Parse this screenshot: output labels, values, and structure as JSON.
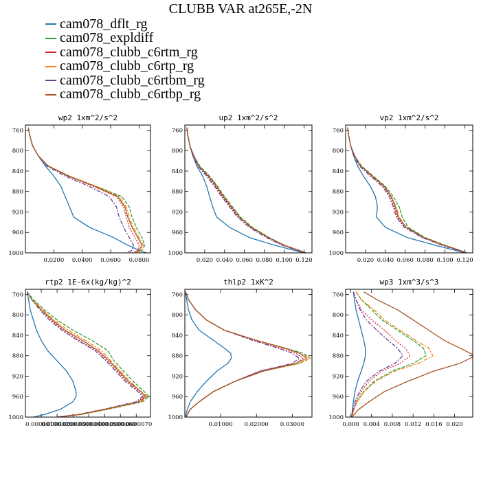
{
  "title": "CLUBB VAR at265E,-2N",
  "legend": [
    {
      "name": "cam078_dflt_rg",
      "color": "#1f77b4",
      "dash": ""
    },
    {
      "name": "cam078_expldiff",
      "color": "#2ca02c",
      "dash": "5,2"
    },
    {
      "name": "cam078_clubb_c6rtm_rg",
      "color": "#d62728",
      "dash": "2,2"
    },
    {
      "name": "cam078_clubb_c6rtp_rg",
      "color": "#ff7f0e",
      "dash": "6,2,2,2"
    },
    {
      "name": "cam078_clubb_c6rtbm_rg",
      "color": "#6a3d9a",
      "dash": "6,2,2,2"
    },
    {
      "name": "cam078_clubb_c6rtbp_rg",
      "color": "#a65628",
      "dash": ""
    }
  ],
  "chart_data": [
    {
      "type": "line",
      "title": "wp2   1xm^2/s^2",
      "xlim": [
        0,
        0.088
      ],
      "ylim": [
        1000,
        750
      ],
      "xticks": [
        0.02,
        0.04,
        0.06,
        0.08
      ],
      "xtick_labels": [
        "0.0200",
        "0.0400",
        "0.0600",
        "0.0800"
      ],
      "yticks": [
        760,
        800,
        840,
        880,
        920,
        960,
        1000
      ],
      "y": [
        755,
        770,
        790,
        810,
        830,
        850,
        870,
        890,
        910,
        930,
        950,
        970,
        985,
        995,
        1000
      ],
      "series": [
        {
          "name": "cam078_dflt_rg",
          "values": [
            0.002,
            0.003,
            0.005,
            0.009,
            0.014,
            0.02,
            0.025,
            0.028,
            0.031,
            0.034,
            0.045,
            0.062,
            0.072,
            0.08,
            0.085
          ]
        },
        {
          "name": "cam078_expldiff",
          "values": [
            0.002,
            0.003,
            0.005,
            0.009,
            0.016,
            0.03,
            0.05,
            0.068,
            0.073,
            0.075,
            0.078,
            0.082,
            0.084,
            0.082,
            0.08
          ]
        },
        {
          "name": "cam078_clubb_c6rtm_rg",
          "values": [
            0.002,
            0.003,
            0.005,
            0.009,
            0.016,
            0.03,
            0.048,
            0.064,
            0.069,
            0.071,
            0.073,
            0.077,
            0.08,
            0.079,
            0.075
          ]
        },
        {
          "name": "cam078_clubb_c6rtp_rg",
          "values": [
            0.002,
            0.003,
            0.005,
            0.009,
            0.016,
            0.031,
            0.05,
            0.066,
            0.071,
            0.073,
            0.076,
            0.08,
            0.083,
            0.081,
            0.078
          ]
        },
        {
          "name": "cam078_clubb_c6rtbm_rg",
          "values": [
            0.002,
            0.003,
            0.005,
            0.009,
            0.015,
            0.028,
            0.045,
            0.059,
            0.064,
            0.066,
            0.069,
            0.073,
            0.076,
            0.075,
            0.071
          ]
        },
        {
          "name": "cam078_clubb_c6rtbp_rg",
          "values": [
            0.002,
            0.003,
            0.005,
            0.009,
            0.016,
            0.031,
            0.049,
            0.065,
            0.07,
            0.072,
            0.075,
            0.079,
            0.082,
            0.08,
            0.077
          ]
        }
      ]
    },
    {
      "type": "line",
      "title": "up2   1xm^2/s^2",
      "xlim": [
        0,
        0.128
      ],
      "ylim": [
        1000,
        750
      ],
      "xticks": [
        0.02,
        0.04,
        0.06,
        0.08,
        0.1,
        0.12
      ],
      "xtick_labels": [
        "0.020",
        "0.040",
        "0.060",
        "0.080",
        "0.100",
        "0.120"
      ],
      "yticks": [
        760,
        800,
        840,
        880,
        920,
        960,
        1000
      ],
      "y": [
        755,
        770,
        790,
        810,
        830,
        850,
        870,
        890,
        910,
        930,
        950,
        970,
        985,
        995,
        1000
      ],
      "series": [
        {
          "name": "cam078_dflt_rg",
          "values": [
            0.002,
            0.003,
            0.005,
            0.008,
            0.012,
            0.018,
            0.022,
            0.025,
            0.028,
            0.032,
            0.045,
            0.065,
            0.09,
            0.11,
            0.12
          ]
        },
        {
          "name": "cam078_expldiff",
          "values": [
            0.002,
            0.003,
            0.005,
            0.009,
            0.015,
            0.025,
            0.033,
            0.04,
            0.048,
            0.056,
            0.068,
            0.085,
            0.1,
            0.115,
            0.122
          ]
        },
        {
          "name": "cam078_clubb_c6rtm_rg",
          "values": [
            0.002,
            0.003,
            0.005,
            0.009,
            0.014,
            0.023,
            0.031,
            0.038,
            0.046,
            0.054,
            0.066,
            0.083,
            0.099,
            0.114,
            0.121
          ]
        },
        {
          "name": "cam078_clubb_c6rtp_rg",
          "values": [
            0.002,
            0.003,
            0.005,
            0.009,
            0.014,
            0.024,
            0.032,
            0.039,
            0.047,
            0.055,
            0.067,
            0.084,
            0.1,
            0.115,
            0.122
          ]
        },
        {
          "name": "cam078_clubb_c6rtbm_rg",
          "values": [
            0.002,
            0.003,
            0.005,
            0.008,
            0.013,
            0.022,
            0.03,
            0.037,
            0.045,
            0.053,
            0.065,
            0.082,
            0.098,
            0.113,
            0.12
          ]
        },
        {
          "name": "cam078_clubb_c6rtbp_rg",
          "values": [
            0.002,
            0.003,
            0.005,
            0.009,
            0.014,
            0.024,
            0.032,
            0.039,
            0.047,
            0.055,
            0.067,
            0.084,
            0.1,
            0.115,
            0.122
          ]
        }
      ]
    },
    {
      "type": "line",
      "title": "vp2   1xm^2/s^2",
      "xlim": [
        0,
        0.128
      ],
      "ylim": [
        1000,
        750
      ],
      "xticks": [
        0.02,
        0.04,
        0.06,
        0.08,
        0.1,
        0.12
      ],
      "xtick_labels": [
        "0.020",
        "0.040",
        "0.060",
        "0.080",
        "0.100",
        "0.120"
      ],
      "yticks": [
        760,
        800,
        840,
        880,
        920,
        960,
        1000
      ],
      "y": [
        755,
        770,
        790,
        810,
        830,
        850,
        870,
        890,
        910,
        930,
        950,
        970,
        985,
        995,
        1000
      ],
      "series": [
        {
          "name": "cam078_dflt_rg",
          "values": [
            0.002,
            0.003,
            0.005,
            0.008,
            0.012,
            0.018,
            0.025,
            0.03,
            0.032,
            0.031,
            0.04,
            0.062,
            0.09,
            0.11,
            0.12
          ]
        },
        {
          "name": "cam078_expldiff",
          "values": [
            0.002,
            0.003,
            0.005,
            0.009,
            0.016,
            0.028,
            0.04,
            0.048,
            0.054,
            0.057,
            0.063,
            0.08,
            0.1,
            0.115,
            0.122
          ]
        },
        {
          "name": "cam078_clubb_c6rtm_rg",
          "values": [
            0.002,
            0.003,
            0.005,
            0.009,
            0.015,
            0.026,
            0.038,
            0.045,
            0.049,
            0.052,
            0.06,
            0.078,
            0.098,
            0.114,
            0.121
          ]
        },
        {
          "name": "cam078_clubb_c6rtp_rg",
          "values": [
            0.002,
            0.003,
            0.005,
            0.009,
            0.015,
            0.027,
            0.039,
            0.046,
            0.051,
            0.054,
            0.061,
            0.079,
            0.099,
            0.115,
            0.122
          ]
        },
        {
          "name": "cam078_clubb_c6rtbm_rg",
          "values": [
            0.002,
            0.003,
            0.005,
            0.008,
            0.014,
            0.025,
            0.037,
            0.044,
            0.048,
            0.051,
            0.059,
            0.077,
            0.097,
            0.113,
            0.12
          ]
        },
        {
          "name": "cam078_clubb_c6rtbp_rg",
          "values": [
            0.002,
            0.003,
            0.005,
            0.009,
            0.015,
            0.027,
            0.039,
            0.046,
            0.05,
            0.053,
            0.061,
            0.079,
            0.099,
            0.115,
            0.122
          ]
        }
      ]
    },
    {
      "type": "line",
      "title": "rtp2   1E-6x(kg/kg)^2",
      "xlim": [
        0,
        7.9e-06
      ],
      "ylim": [
        1000,
        750
      ],
      "xticks": [
        1e-06,
        2e-06,
        3e-06,
        4e-06,
        5e-06,
        6e-06,
        7e-06
      ],
      "xtick_labels": [
        "0.0000010",
        "0.0000020",
        "0.0000030",
        "0.0000040",
        "0.0000050",
        "0.0000060",
        "0.0000070"
      ],
      "yticks": [
        760,
        800,
        840,
        880,
        920,
        960,
        1000
      ],
      "y": [
        755,
        770,
        790,
        810,
        830,
        850,
        870,
        890,
        910,
        930,
        950,
        960,
        970,
        985,
        995,
        1000
      ],
      "series": [
        {
          "name": "cam078_dflt_rg",
          "values": [
            1e-07,
            2e-07,
            3e-07,
            5e-07,
            7e-07,
            1e-06,
            1.4e-06,
            2e-06,
            2.6e-06,
            3e-06,
            3.2e-06,
            3.2e-06,
            3e-06,
            2.2e-06,
            1.2e-06,
            5e-07
          ]
        },
        {
          "name": "cam078_expldiff",
          "values": [
            1e-07,
            5e-07,
            1.2e-06,
            2e-06,
            3e-06,
            4.2e-06,
            5.2e-06,
            5.6e-06,
            6.2e-06,
            6.8e-06,
            7.5e-06,
            7.8e-06,
            7.4e-06,
            5.2e-06,
            3.5e-06,
            2e-06
          ]
        },
        {
          "name": "cam078_clubb_c6rtm_rg",
          "values": [
            1e-07,
            4e-07,
            1e-06,
            1.6e-06,
            2.4e-06,
            3.4e-06,
            4.5e-06,
            5.2e-06,
            5.8e-06,
            6.4e-06,
            7.2e-06,
            7.5e-06,
            7.1e-06,
            5e-06,
            3.4e-06,
            2e-06
          ]
        },
        {
          "name": "cam078_clubb_c6rtp_rg",
          "values": [
            1e-07,
            4e-07,
            1.1e-06,
            1.8e-06,
            2.7e-06,
            3.8e-06,
            4.8e-06,
            5.4e-06,
            6e-06,
            6.6e-06,
            7.3e-06,
            7.7e-06,
            7.3e-06,
            5.1e-06,
            3.5e-06,
            2e-06
          ]
        },
        {
          "name": "cam078_clubb_c6rtbm_rg",
          "values": [
            1e-07,
            4e-07,
            9e-07,
            1.5e-06,
            2.3e-06,
            3.3e-06,
            4.4e-06,
            5.1e-06,
            5.7e-06,
            6.3e-06,
            7.1e-06,
            7.4e-06,
            7e-06,
            4.9e-06,
            3.3e-06,
            1.9e-06
          ]
        },
        {
          "name": "cam078_clubb_c6rtbp_rg",
          "values": [
            1e-07,
            4e-07,
            1e-06,
            1.7e-06,
            2.5e-06,
            3.6e-06,
            4.6e-06,
            5.3e-06,
            5.9e-06,
            6.5e-06,
            7.3e-06,
            7.6e-06,
            7.2e-06,
            5e-06,
            3.4e-06,
            2e-06
          ]
        }
      ]
    },
    {
      "type": "line",
      "title": "thlp2   1xK^2",
      "xlim": [
        0,
        0.0355
      ],
      "ylim": [
        1000,
        750
      ],
      "xticks": [
        0.01,
        0.02,
        0.03
      ],
      "xtick_labels": [
        "0.01000",
        "0.02000",
        "0.03000"
      ],
      "yticks": [
        760,
        800,
        840,
        880,
        920,
        960,
        1000
      ],
      "y": [
        755,
        770,
        790,
        810,
        830,
        850,
        865,
        875,
        885,
        895,
        910,
        930,
        950,
        970,
        985,
        995,
        1000
      ],
      "series": [
        {
          "name": "cam078_dflt_rg",
          "values": [
            0.0002,
            0.0005,
            0.001,
            0.002,
            0.004,
            0.008,
            0.011,
            0.0128,
            0.013,
            0.012,
            0.009,
            0.006,
            0.0035,
            0.0015,
            0.0007,
            0.0003,
            0.0002
          ]
        },
        {
          "name": "cam078_expldiff",
          "values": [
            0.0002,
            0.001,
            0.003,
            0.006,
            0.011,
            0.02,
            0.028,
            0.033,
            0.035,
            0.032,
            0.022,
            0.014,
            0.008,
            0.004,
            0.0015,
            0.0007,
            0.0003
          ]
        },
        {
          "name": "cam078_clubb_c6rtm_rg",
          "values": [
            0.0002,
            0.001,
            0.003,
            0.006,
            0.011,
            0.019,
            0.027,
            0.031,
            0.033,
            0.031,
            0.021,
            0.014,
            0.008,
            0.004,
            0.0015,
            0.0007,
            0.0003
          ]
        },
        {
          "name": "cam078_clubb_c6rtp_rg",
          "values": [
            0.0002,
            0.001,
            0.003,
            0.006,
            0.011,
            0.02,
            0.028,
            0.032,
            0.035,
            0.032,
            0.022,
            0.014,
            0.008,
            0.004,
            0.0015,
            0.0007,
            0.0003
          ]
        },
        {
          "name": "cam078_clubb_c6rtbm_rg",
          "values": [
            0.0002,
            0.001,
            0.003,
            0.006,
            0.011,
            0.019,
            0.026,
            0.03,
            0.032,
            0.03,
            0.021,
            0.014,
            0.008,
            0.004,
            0.0015,
            0.0007,
            0.0003
          ]
        },
        {
          "name": "cam078_clubb_c6rtbp_rg",
          "values": [
            0.0002,
            0.001,
            0.003,
            0.006,
            0.011,
            0.02,
            0.028,
            0.032,
            0.034,
            0.031,
            0.022,
            0.014,
            0.008,
            0.004,
            0.0015,
            0.0007,
            0.0003
          ]
        }
      ]
    },
    {
      "type": "line",
      "title": "wp3   1xm^3/s^3",
      "xlim": [
        -0.001,
        0.0235
      ],
      "ylim": [
        1000,
        750
      ],
      "xticks": [
        0.0,
        0.004,
        0.008,
        0.012,
        0.016,
        0.02
      ],
      "xtick_labels": [
        "0.000",
        "0.004",
        "0.008",
        "0.012",
        "0.016",
        "0.020"
      ],
      "yticks": [
        760,
        800,
        840,
        880,
        920,
        960,
        1000
      ],
      "y": [
        755,
        770,
        790,
        810,
        830,
        850,
        865,
        880,
        895,
        910,
        930,
        950,
        970,
        985,
        995,
        1000
      ],
      "series": [
        {
          "name": "cam078_dflt_rg",
          "values": [
            0.0005,
            0.0007,
            0.001,
            0.0015,
            0.002,
            0.0025,
            0.0028,
            0.0028,
            0.0025,
            0.002,
            0.0013,
            0.0008,
            0.0005,
            0.0003,
            0.0002,
            0.0001
          ]
        },
        {
          "name": "cam078_expldiff",
          "values": [
            0.001,
            0.002,
            0.004,
            0.006,
            0.009,
            0.012,
            0.014,
            0.0145,
            0.012,
            0.008,
            0.0045,
            0.0025,
            0.0012,
            0.0006,
            0.0003,
            0.0002
          ]
        },
        {
          "name": "cam078_clubb_c6rtm_rg",
          "values": [
            0.0005,
            0.001,
            0.002,
            0.004,
            0.0065,
            0.0085,
            0.0105,
            0.0115,
            0.0095,
            0.006,
            0.0035,
            0.002,
            0.001,
            0.0005,
            0.0003,
            0.0002
          ]
        },
        {
          "name": "cam078_clubb_c6rtp_rg",
          "values": [
            0.001,
            0.002,
            0.0045,
            0.0065,
            0.0095,
            0.0125,
            0.015,
            0.0158,
            0.013,
            0.0085,
            0.0048,
            0.0026,
            0.0012,
            0.0006,
            0.0003,
            0.0002
          ]
        },
        {
          "name": "cam078_clubb_c6rtbm_rg",
          "values": [
            0.0005,
            0.001,
            0.0018,
            0.003,
            0.005,
            0.0072,
            0.009,
            0.01,
            0.0085,
            0.0055,
            0.003,
            0.0017,
            0.0008,
            0.0004,
            0.0002,
            0.0001
          ]
        },
        {
          "name": "cam078_clubb_c6rtbp_rg",
          "values": [
            0.0025,
            0.005,
            0.009,
            0.012,
            0.015,
            0.018,
            0.021,
            0.024,
            0.021,
            0.016,
            0.011,
            0.0065,
            0.0035,
            0.0015,
            0.0006,
            0.0003
          ]
        }
      ]
    }
  ]
}
